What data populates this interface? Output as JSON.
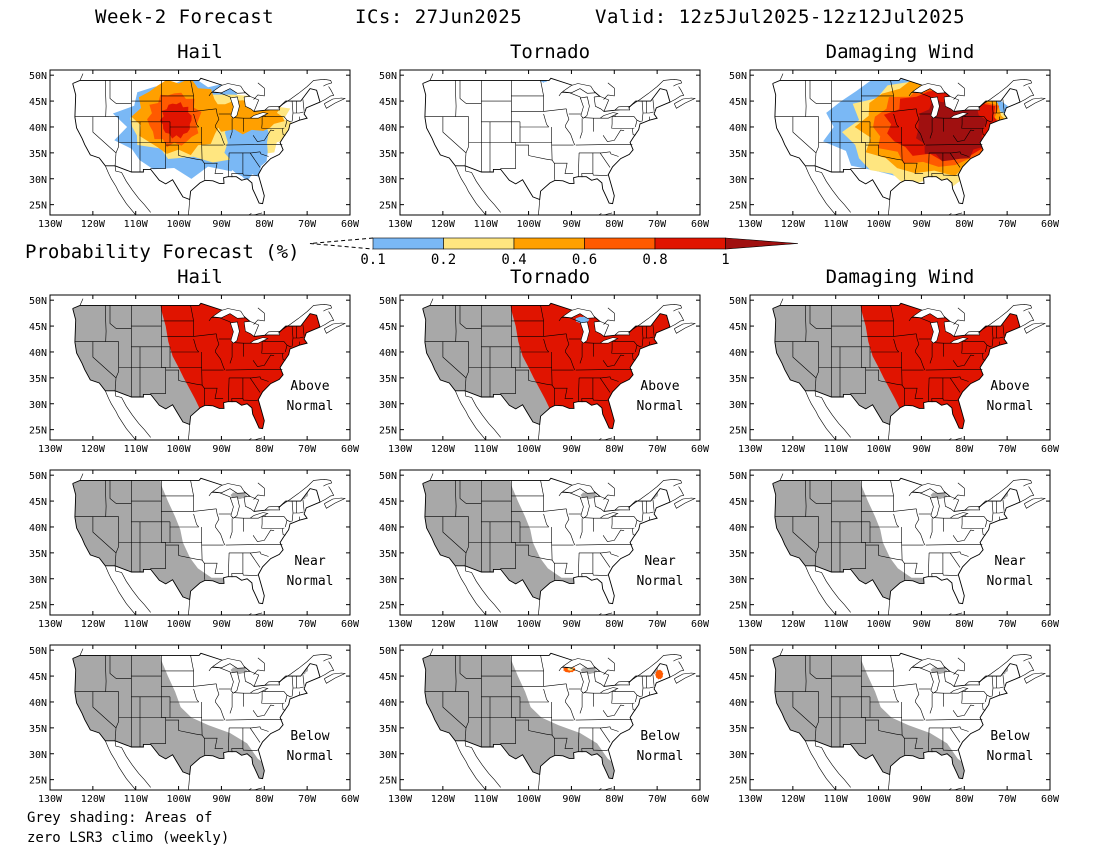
{
  "header": {
    "label": "Week-2 Forecast",
    "ics": "ICs: 27Jun2025",
    "valid": "Valid: 12z5Jul2025-12z12Jul2025"
  },
  "legend": {
    "title": "Probability Forecast (%)",
    "ticks": [
      "0.1",
      "0.2",
      "0.4",
      "0.6",
      "0.8",
      "1"
    ],
    "colors": [
      "#7ab8f5",
      "#ffe680",
      "#ffa000",
      "#ff5a00",
      "#e01400",
      "#a01010"
    ]
  },
  "columns": [
    "Hail",
    "Tornado",
    "Damaging Wind"
  ],
  "rows": [
    {
      "label": ""
    },
    {
      "label1": "Above",
      "label2": "Normal"
    },
    {
      "label1": "Near",
      "label2": "Normal"
    },
    {
      "label1": "Below",
      "label2": "Normal"
    }
  ],
  "axes": {
    "lat_labels": [
      "50N",
      "45N",
      "40N",
      "35N",
      "30N",
      "25N"
    ],
    "lon_labels": [
      "130W",
      "120W",
      "110W",
      "100W",
      "90W",
      "80W",
      "70W",
      "60W"
    ]
  },
  "colors": {
    "grey_zero_climo": "#a8a8a8",
    "above_normal": "#e01400"
  },
  "footnote": {
    "line1": "Grey shading: Areas of",
    "line2": "zero LSR3 climo (weekly)"
  }
}
